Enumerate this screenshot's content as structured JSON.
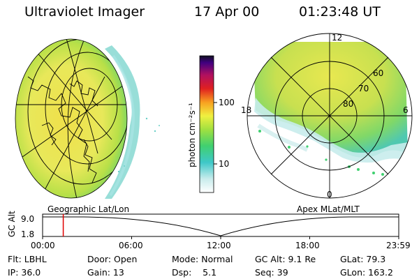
{
  "header": {
    "title": "Ultraviolet Imager",
    "date": "17 Apr 00",
    "time": "01:23:48 UT"
  },
  "colorbar": {
    "unit_label": "photon cm⁻²s⁻¹",
    "ticks": [
      "100",
      "10"
    ]
  },
  "polar_plot": {
    "mlt_labels": [
      "12",
      "18",
      "6",
      "0"
    ],
    "mlat_labels": [
      "60",
      "70",
      "80"
    ]
  },
  "timeline": {
    "left_label": "Geographic Lat/Lon",
    "right_label": "Apex MLat/MLT",
    "axis_label": "GC Alt",
    "y_ticks": [
      "9.0",
      "1.8"
    ],
    "x_ticks": [
      "00:00",
      "06:00",
      "12:00",
      "18:00",
      "23:59"
    ],
    "current_time_fraction": 0.058
  },
  "info": {
    "row1": [
      {
        "key": "flt",
        "text": "Flt: LBHL"
      },
      {
        "key": "door",
        "text": "Door: Open"
      },
      {
        "key": "mode",
        "text": "Mode: Normal"
      },
      {
        "key": "gcalt",
        "text": "GC Alt: 9.1 Re"
      },
      {
        "key": "glat",
        "text": "GLat: 79.3"
      }
    ],
    "row2": [
      {
        "key": "ip",
        "text": "IP: 36.0"
      },
      {
        "key": "gain",
        "text": "Gain: 13"
      },
      {
        "key": "dsp",
        "text": "Dsp:    5.1"
      },
      {
        "key": "seq",
        "text": "Seq: 39"
      },
      {
        "key": "glon",
        "text": "GLon: 163.2"
      }
    ]
  },
  "colors": {
    "accent_line": "#e00000",
    "yellow": "#f0e850",
    "green": "#9fd840",
    "cyan": "#40c8c8"
  }
}
